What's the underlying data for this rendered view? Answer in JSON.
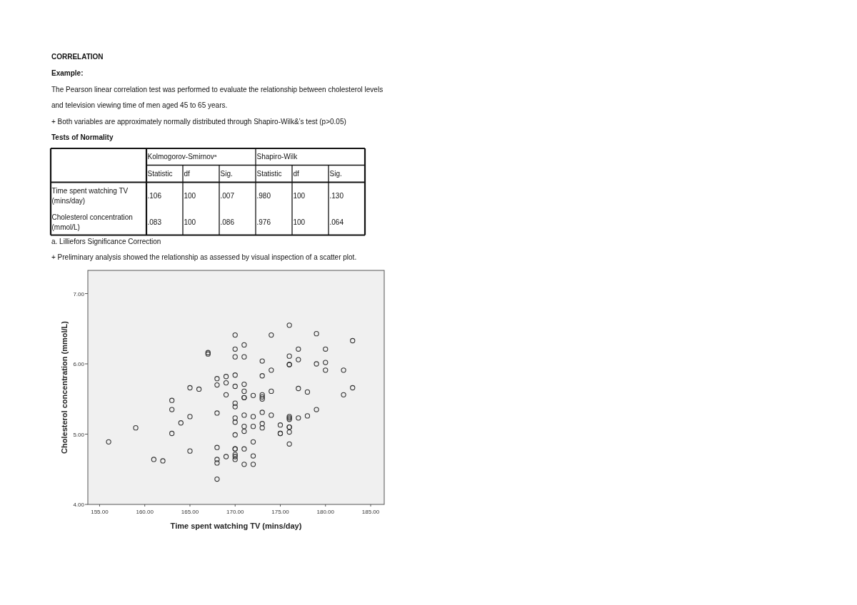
{
  "chart_data": {
    "type": "scatter",
    "title": "CORRELATION",
    "subtitle": "Example:",
    "xlabel": "Time spent watching TV (mins/day)",
    "ylabel": "Cholesterol concentration (mmol/L)",
    "x": [
      156,
      159,
      161,
      162,
      163,
      163,
      163,
      164,
      165,
      165,
      165,
      166,
      167,
      167,
      168,
      168,
      168,
      168,
      168,
      168,
      168,
      169,
      169,
      169,
      169,
      170,
      170,
      170,
      170,
      170,
      170,
      170,
      170,
      170,
      170,
      170,
      170,
      170,
      170,
      170,
      171,
      171,
      171,
      171,
      171,
      171,
      171,
      171,
      171,
      171,
      171,
      172,
      172,
      172,
      172,
      172,
      172,
      173,
      173,
      173,
      173,
      173,
      173,
      173,
      173,
      174,
      174,
      174,
      174,
      175,
      175,
      175,
      176,
      176,
      176,
      176,
      176,
      176,
      176,
      176,
      176,
      176,
      176,
      177,
      177,
      177,
      177,
      178,
      178,
      179,
      179,
      179,
      180,
      180,
      180,
      182,
      182,
      183,
      183
    ],
    "values": [
      4.89,
      5.09,
      4.64,
      4.62,
      5.48,
      5.35,
      5.01,
      5.16,
      5.66,
      5.25,
      4.76,
      5.64,
      6.16,
      6.14,
      5.79,
      5.7,
      5.3,
      4.81,
      4.64,
      4.59,
      4.36,
      5.82,
      5.73,
      5.56,
      4.68,
      6.41,
      6.21,
      6.1,
      5.84,
      5.68,
      5.44,
      5.39,
      5.23,
      5.17,
      4.99,
      4.79,
      4.79,
      4.71,
      4.68,
      4.64,
      6.27,
      6.1,
      5.71,
      5.61,
      5.52,
      5.52,
      5.27,
      5.11,
      5.04,
      4.79,
      4.57,
      5.55,
      5.25,
      5.11,
      4.89,
      4.69,
      4.57,
      6.04,
      5.83,
      5.56,
      5.53,
      5.5,
      5.31,
      5.15,
      5.09,
      6.41,
      5.91,
      5.61,
      5.27,
      5.13,
      5.01,
      5.01,
      6.55,
      6.11,
      5.99,
      5.99,
      5.25,
      5.23,
      5.21,
      5.1,
      5.1,
      5.03,
      4.86,
      6.21,
      6.06,
      5.65,
      5.23,
      5.6,
      5.26,
      6.43,
      6.0,
      5.35,
      6.21,
      6.02,
      5.91,
      5.91,
      5.56,
      6.33,
      5.66
    ],
    "color": "#333333",
    "marker": "circle",
    "xlim": [
      153.7,
      186.5
    ],
    "ylim": [
      4,
      7.33
    ],
    "xticks": [
      {
        "value": 155,
        "label": "155.00"
      },
      {
        "value": 160,
        "label": "160.00"
      },
      {
        "value": 165,
        "label": "165.00"
      },
      {
        "value": 170,
        "label": "170.00"
      },
      {
        "value": 175,
        "label": "175.00"
      },
      {
        "value": 180,
        "label": "180.00"
      },
      {
        "value": 185,
        "label": "185.00"
      }
    ],
    "yticks": [
      {
        "value": 4,
        "label": "4.00"
      },
      {
        "value": 5,
        "label": "5.00"
      },
      {
        "value": 6,
        "label": "6.00"
      },
      {
        "value": 7,
        "label": "7.00"
      }
    ],
    "annotations": [
      "The Pearson linear correlation test was performed to evaluate the relationship between cholesterol levels",
      "and television viewing time of men aged 45 to 65 years.",
      "+ Both variables are approximately normally distributed through Shapiro-Wilk&’s test (p>0.05)",
      "Tests of Normality",
      "Kolmogorov-Smirnov$^{a}$",
      "Shapiro-Wilk",
      "Statistic",
      "df",
      "Sig.",
      "Statistic",
      "df",
      "Sig.",
      "Time spent watching TV (mins/day)",
      ".106",
      "100",
      ".007",
      ".980",
      "100",
      ".130",
      "Cholesterol concentration (mmol/L)",
      ".083",
      "100",
      ".086",
      ".976",
      "100",
      ".064",
      "a. Lilliefors Significance Correction",
      "+ Preliminary analysis showed the relationship as assessed by visual inspection of a scatter plot."
    ]
  }
}
